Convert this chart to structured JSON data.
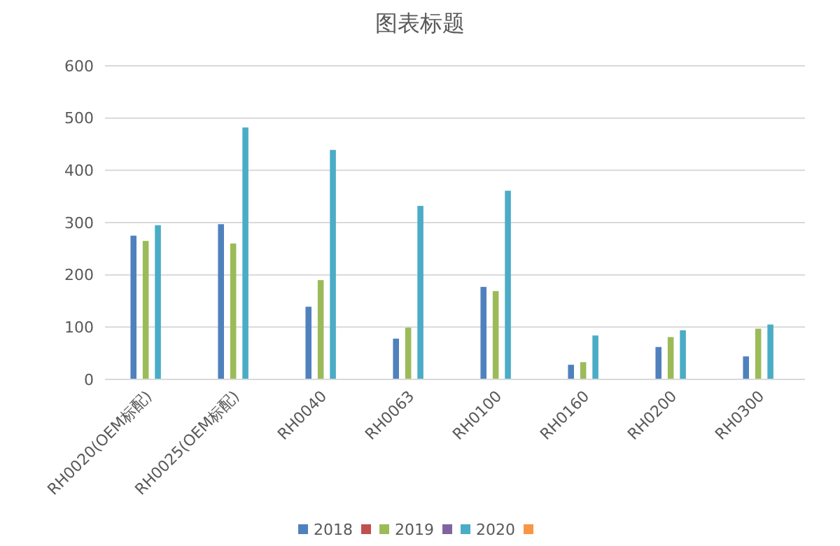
{
  "chart_data": {
    "type": "bar",
    "title": "图表标题",
    "categories": [
      "RH0020(OEM标配)",
      "RH0025(OEM标配)",
      "RH0040",
      "RH0063",
      "RH0100",
      "RH0160",
      "RH0200",
      "RH0300"
    ],
    "series": [
      {
        "name": "2018",
        "color": "#4f81bd",
        "values": [
          275,
          297,
          139,
          78,
          177,
          28,
          62,
          44
        ]
      },
      {
        "color": "#c0504d",
        "values": [
          null,
          null,
          null,
          null,
          null,
          null,
          null,
          null
        ]
      },
      {
        "name": "2019",
        "color": "#9bbb59",
        "values": [
          265,
          260,
          190,
          99,
          169,
          33,
          81,
          97
        ]
      },
      {
        "color": "#8064a2",
        "values": [
          null,
          null,
          null,
          null,
          null,
          null,
          null,
          null
        ]
      },
      {
        "name": "2020",
        "color": "#4bacc6",
        "values": [
          295,
          482,
          439,
          332,
          361,
          84,
          94,
          105
        ]
      },
      {
        "color": "#f79646",
        "values": [
          null,
          null,
          null,
          null,
          null,
          null,
          null,
          null
        ]
      }
    ],
    "ylim": [
      0,
      600
    ],
    "yticks": [
      0,
      100,
      200,
      300,
      400,
      500,
      600
    ],
    "grid": "y",
    "legend": "bottom"
  }
}
